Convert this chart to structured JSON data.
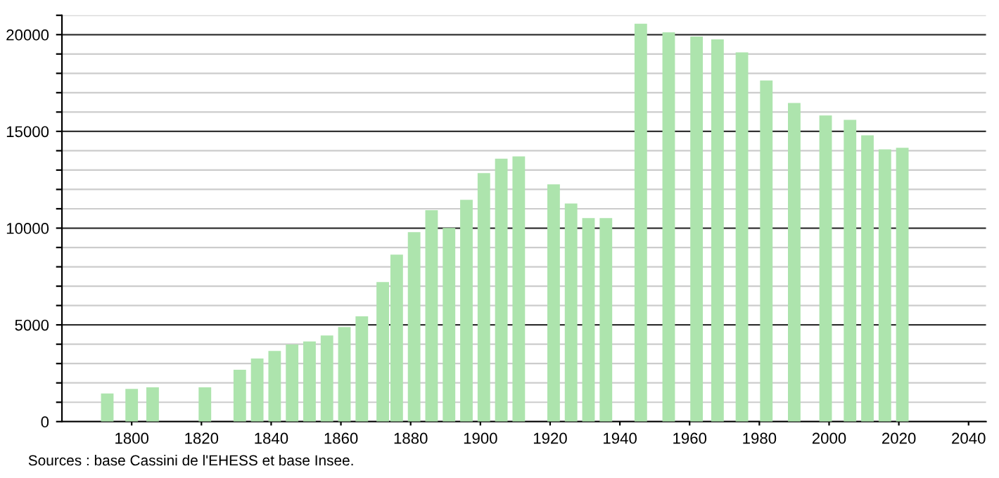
{
  "chart_data": {
    "type": "bar",
    "color": "#ade4ad",
    "x": [
      1793,
      1800,
      1806,
      1821,
      1831,
      1836,
      1841,
      1846,
      1851,
      1856,
      1861,
      1866,
      1872,
      1876,
      1881,
      1886,
      1891,
      1896,
      1901,
      1906,
      1911,
      1921,
      1926,
      1931,
      1936,
      1946,
      1954,
      1962,
      1968,
      1975,
      1982,
      1990,
      1999,
      2006,
      2011,
      2016,
      2021
    ],
    "values": [
      1450,
      1690,
      1770,
      1770,
      2680,
      3260,
      3650,
      3990,
      4140,
      4450,
      4890,
      5440,
      7210,
      8630,
      9790,
      10930,
      10010,
      11460,
      12840,
      13590,
      13710,
      12260,
      11270,
      10520,
      10520,
      20560,
      20120,
      19900,
      19760,
      19080,
      17630,
      16470,
      15820,
      15600,
      14800,
      14070,
      14150
    ],
    "xlim": [
      1780,
      2045
    ],
    "xticks": [
      1800,
      1820,
      1840,
      1860,
      1880,
      1900,
      1920,
      1940,
      1960,
      1980,
      2000,
      2020,
      2040
    ],
    "ylim": [
      0,
      21000
    ],
    "yticks": [
      0,
      {
        "value": 1000,
        "label": null
      },
      {
        "value": 2000,
        "label": null
      },
      {
        "value": 3000,
        "label": null
      },
      {
        "value": 4000,
        "label": null
      },
      5000,
      {
        "value": 6000,
        "label": null
      },
      {
        "value": 7000,
        "label": null
      },
      {
        "value": 8000,
        "label": null
      },
      {
        "value": 9000,
        "label": null
      },
      10000,
      {
        "value": 11000,
        "label": null
      },
      {
        "value": 12000,
        "label": null
      },
      {
        "value": 13000,
        "label": null
      },
      {
        "value": 14000,
        "label": null
      },
      15000,
      {
        "value": 16000,
        "label": null
      },
      {
        "value": 17000,
        "label": null
      },
      {
        "value": 18000,
        "label": null
      },
      {
        "value": 19000,
        "label": null
      },
      20000,
      {
        "value": 21000,
        "label": null
      }
    ],
    "grid": "y",
    "annotations": [
      "Sources : base Cassini de l'EHESS et base Insee."
    ]
  }
}
